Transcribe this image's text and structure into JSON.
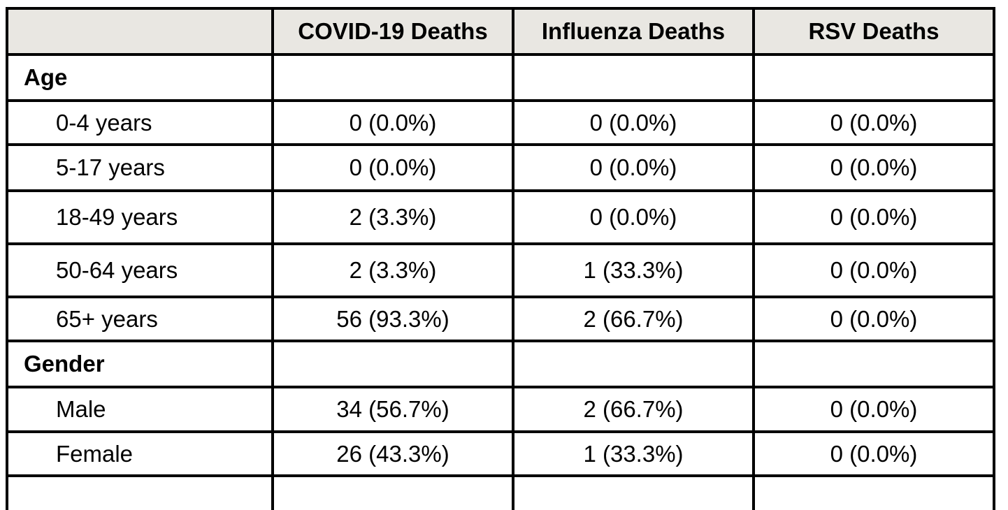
{
  "colors": {
    "page_bg": "#ffffff",
    "header_bg": "#e9e7e2",
    "border": "#000000",
    "text": "#000000"
  },
  "table": {
    "columns": [
      "",
      "COVID-19 Deaths",
      "Influenza Deaths",
      "RSV Deaths"
    ],
    "rows": [
      {
        "label": "Age",
        "type": "section",
        "values": [
          "",
          "",
          ""
        ]
      },
      {
        "label": "0-4 years",
        "type": "item",
        "values": [
          "0 (0.0%)",
          "0 (0.0%)",
          "0 (0.0%)"
        ]
      },
      {
        "label": "5-17 years",
        "type": "item",
        "values": [
          "0 (0.0%)",
          "0 (0.0%)",
          "0 (0.0%)"
        ]
      },
      {
        "label": "18-49 years",
        "type": "item",
        "values": [
          "2 (3.3%)",
          "0 (0.0%)",
          "0 (0.0%)"
        ]
      },
      {
        "label": "50-64 years",
        "type": "item",
        "values": [
          "2 (3.3%)",
          "1 (33.3%)",
          "0 (0.0%)"
        ]
      },
      {
        "label": "65+ years",
        "type": "item",
        "values": [
          "56 (93.3%)",
          "2 (66.7%)",
          "0 (0.0%)"
        ]
      },
      {
        "label": "Gender",
        "type": "section",
        "values": [
          "",
          "",
          ""
        ]
      },
      {
        "label": "Male",
        "type": "item",
        "values": [
          "34 (56.7%)",
          "2 (66.7%)",
          "0 (0.0%)"
        ]
      },
      {
        "label": "Female",
        "type": "item",
        "values": [
          "26 (43.3%)",
          "1 (33.3%)",
          "0 (0.0%)"
        ]
      },
      {
        "label": "",
        "type": "partial",
        "values": [
          "",
          "",
          ""
        ]
      }
    ]
  }
}
